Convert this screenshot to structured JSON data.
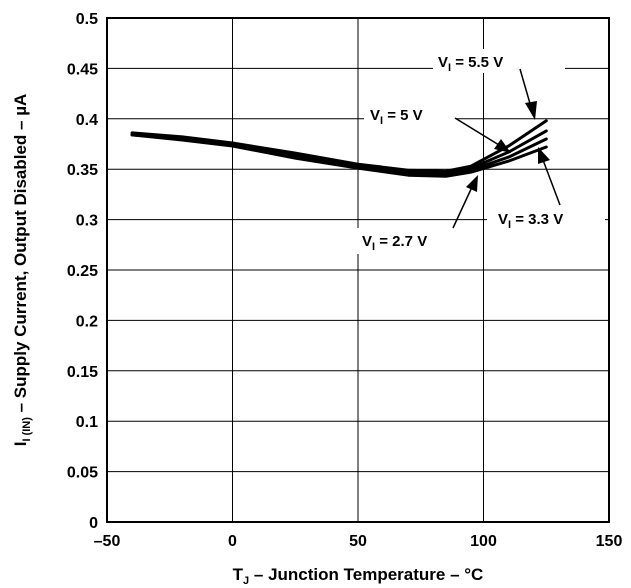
{
  "chart_data": {
    "type": "line",
    "xlabel": {
      "main": "T",
      "sub": "J",
      "rest": " – Junction Temperature – °C"
    },
    "ylabel": {
      "main": "I",
      "sub": "I (IN)",
      "rest": " – Supply Current, Output Disabled – ",
      "unit": "µA"
    },
    "xlim": [
      -50,
      150
    ],
    "ylim": [
      0,
      0.5
    ],
    "xticks": [
      "–50",
      "0",
      "50",
      "100",
      "150"
    ],
    "xtick_values": [
      -50,
      0,
      50,
      100,
      150
    ],
    "yticks": [
      "0",
      "0.05",
      "0.1",
      "0.15",
      "0.2",
      "0.25",
      "0.3",
      "0.35",
      "0.4",
      "0.45",
      "0.5"
    ],
    "ytick_values": [
      0,
      0.05,
      0.1,
      0.15,
      0.2,
      0.25,
      0.3,
      0.35,
      0.4,
      0.45,
      0.5
    ],
    "grid": true,
    "series": [
      {
        "name": "V_I = 5.5 V",
        "label": {
          "main": "V",
          "sub": "I",
          "rest": " = 5.5 V"
        },
        "x": [
          -40,
          -20,
          0,
          25,
          50,
          70,
          85,
          95,
          110,
          125
        ],
        "y": [
          0.386,
          0.382,
          0.376,
          0.366,
          0.355,
          0.349,
          0.348,
          0.353,
          0.373,
          0.398
        ]
      },
      {
        "name": "V_I = 5 V",
        "label": {
          "main": "V",
          "sub": "I",
          "rest": " = 5 V"
        },
        "x": [
          -40,
          -20,
          0,
          25,
          50,
          70,
          85,
          95,
          110,
          125
        ],
        "y": [
          0.385,
          0.381,
          0.375,
          0.364,
          0.353,
          0.347,
          0.346,
          0.351,
          0.367,
          0.388
        ]
      },
      {
        "name": "V_I = 3.3 V",
        "label": {
          "main": "V",
          "sub": "I",
          "rest": " = 3.3 V"
        },
        "x": [
          -40,
          -20,
          0,
          25,
          50,
          70,
          85,
          95,
          110,
          125
        ],
        "y": [
          0.384,
          0.38,
          0.374,
          0.362,
          0.352,
          0.345,
          0.344,
          0.349,
          0.362,
          0.38
        ]
      },
      {
        "name": "V_I = 2.7 V",
        "label": {
          "main": "V",
          "sub": "I",
          "rest": " = 2.7 V"
        },
        "x": [
          -40,
          -20,
          0,
          25,
          50,
          70,
          85,
          95,
          110,
          125
        ],
        "y": [
          0.384,
          0.379,
          0.373,
          0.361,
          0.351,
          0.344,
          0.343,
          0.347,
          0.358,
          0.372
        ]
      }
    ]
  }
}
